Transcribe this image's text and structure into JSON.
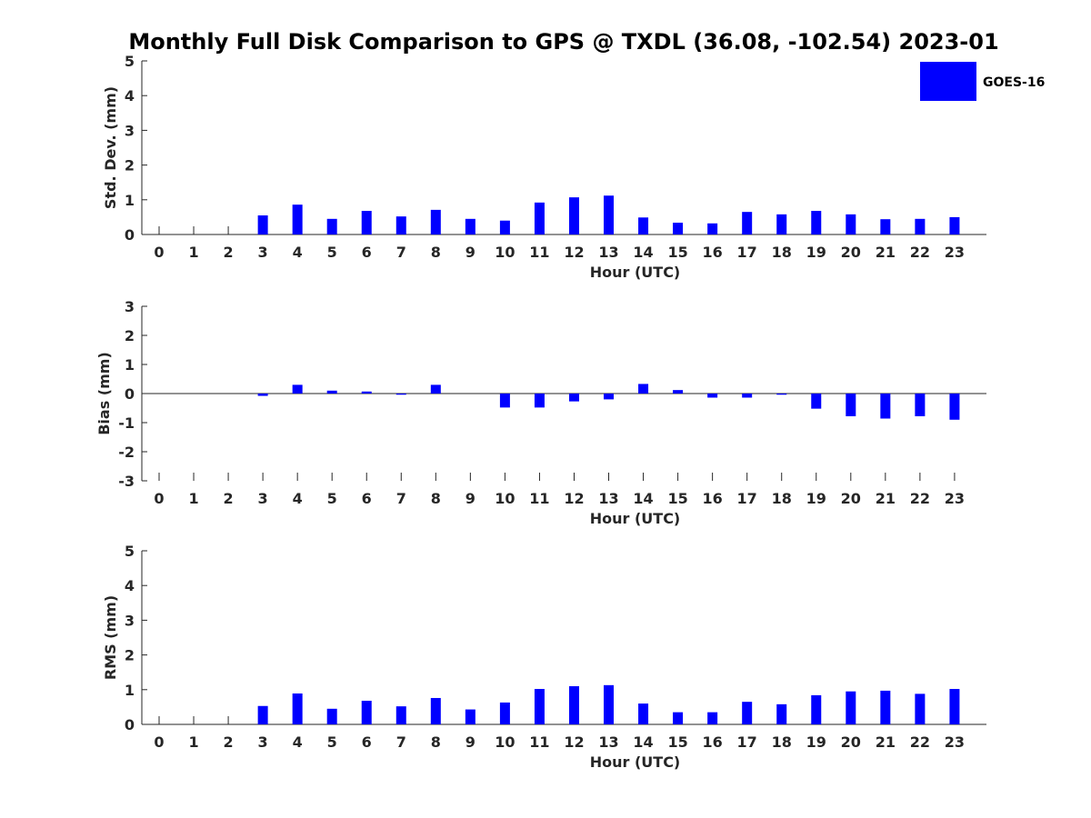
{
  "title": "Monthly Full Disk Comparison to GPS @ TXDL (36.08, -102.54) 2023-01",
  "legend": {
    "label": "GOES-16",
    "color": "#0000ff"
  },
  "chart_data": [
    {
      "type": "bar",
      "ylabel": "Std. Dev. (mm)",
      "xlabel": "Hour (UTC)",
      "ylim": [
        0,
        5
      ],
      "yticks": [
        0,
        1,
        2,
        3,
        4,
        5
      ],
      "categories": [
        "0",
        "1",
        "2",
        "3",
        "4",
        "5",
        "6",
        "7",
        "8",
        "9",
        "10",
        "11",
        "12",
        "13",
        "14",
        "15",
        "16",
        "17",
        "18",
        "19",
        "20",
        "21",
        "22",
        "23"
      ],
      "series": [
        {
          "name": "GOES-16",
          "values": [
            null,
            null,
            null,
            0.55,
            0.86,
            0.45,
            0.68,
            0.52,
            0.71,
            0.45,
            0.4,
            0.92,
            1.07,
            1.12,
            0.49,
            0.34,
            0.32,
            0.65,
            0.58,
            0.68,
            0.58,
            0.44,
            0.45,
            0.5
          ]
        }
      ]
    },
    {
      "type": "bar",
      "ylabel": "Bias (mm)",
      "xlabel": "Hour (UTC)",
      "ylim": [
        -3,
        3
      ],
      "yticks": [
        -3,
        -2,
        -1,
        0,
        1,
        2,
        3
      ],
      "categories": [
        "0",
        "1",
        "2",
        "3",
        "4",
        "5",
        "6",
        "7",
        "8",
        "9",
        "10",
        "11",
        "12",
        "13",
        "14",
        "15",
        "16",
        "17",
        "18",
        "19",
        "20",
        "21",
        "22",
        "23"
      ],
      "series": [
        {
          "name": "GOES-16",
          "values": [
            null,
            null,
            null,
            -0.08,
            0.3,
            0.1,
            0.07,
            -0.04,
            0.3,
            0.0,
            -0.48,
            -0.48,
            -0.27,
            -0.2,
            0.33,
            0.12,
            -0.14,
            -0.14,
            -0.04,
            -0.52,
            -0.78,
            -0.86,
            -0.78,
            -0.9
          ]
        }
      ]
    },
    {
      "type": "bar",
      "ylabel": "RMS (mm)",
      "xlabel": "Hour (UTC)",
      "ylim": [
        0,
        5
      ],
      "yticks": [
        0,
        1,
        2,
        3,
        4,
        5
      ],
      "categories": [
        "0",
        "1",
        "2",
        "3",
        "4",
        "5",
        "6",
        "7",
        "8",
        "9",
        "10",
        "11",
        "12",
        "13",
        "14",
        "15",
        "16",
        "17",
        "18",
        "19",
        "20",
        "21",
        "22",
        "23"
      ],
      "series": [
        {
          "name": "GOES-16",
          "values": [
            null,
            null,
            null,
            0.53,
            0.89,
            0.45,
            0.68,
            0.52,
            0.76,
            0.43,
            0.63,
            1.02,
            1.1,
            1.13,
            0.6,
            0.35,
            0.35,
            0.65,
            0.58,
            0.84,
            0.95,
            0.97,
            0.88,
            1.02
          ]
        }
      ]
    }
  ]
}
